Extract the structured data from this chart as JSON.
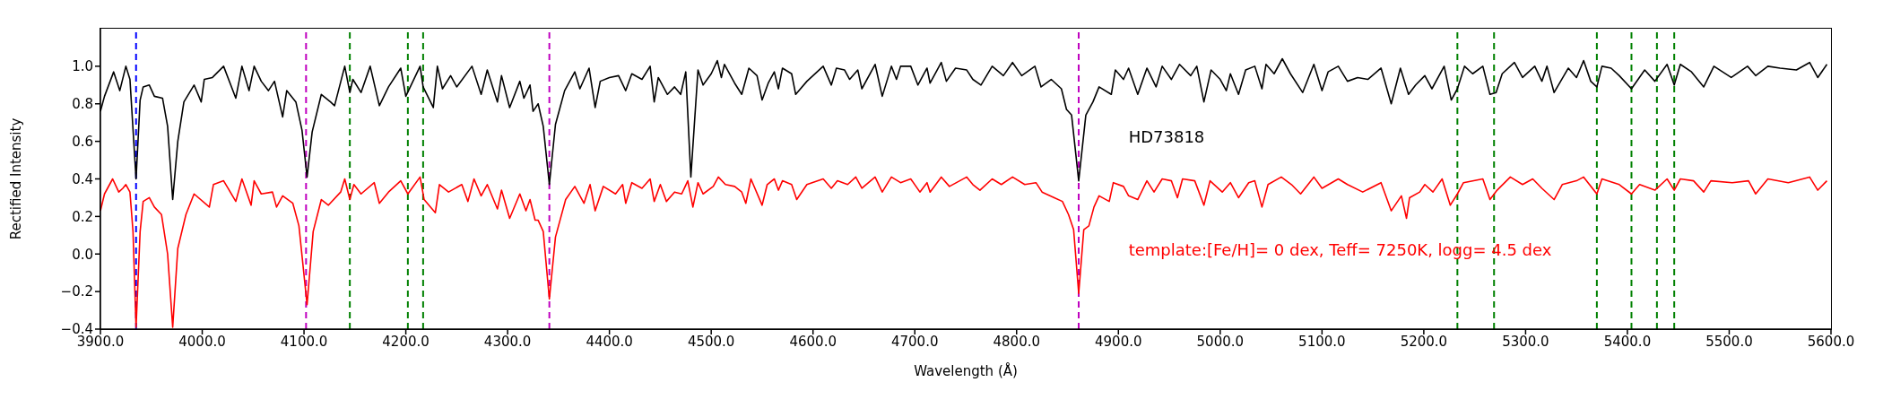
{
  "chart_data": {
    "type": "line",
    "xlabel": "Wavelength (Å)",
    "ylabel": "Rectified Intensity",
    "xlim": [
      3900,
      5600
    ],
    "ylim": [
      -0.4,
      1.2
    ],
    "xticks": [
      {
        "value": 3900,
        "label": "3900.0"
      },
      {
        "value": 4000,
        "label": "4000.0"
      },
      {
        "value": 4100,
        "label": "4100.0"
      },
      {
        "value": 4200,
        "label": "4200.0"
      },
      {
        "value": 4300,
        "label": "4300.0"
      },
      {
        "value": 4400,
        "label": "4400.0"
      },
      {
        "value": 4500,
        "label": "4500.0"
      },
      {
        "value": 4600,
        "label": "4600.0"
      },
      {
        "value": 4700,
        "label": "4700.0"
      },
      {
        "value": 4800,
        "label": "4800.0"
      },
      {
        "value": 4900,
        "label": "4900.0"
      },
      {
        "value": 5000,
        "label": "5000.0"
      },
      {
        "value": 5100,
        "label": "5100.0"
      },
      {
        "value": 5200,
        "label": "5200.0"
      },
      {
        "value": 5300,
        "label": "5300.0"
      },
      {
        "value": 5400,
        "label": "5400.0"
      },
      {
        "value": 5500,
        "label": "5500.0"
      },
      {
        "value": 5600,
        "label": "5600.0"
      }
    ],
    "yticks": [
      {
        "value": -0.4,
        "label": "−0.4"
      },
      {
        "value": -0.2,
        "label": "−0.2"
      },
      {
        "value": 0,
        "label": "0.0"
      },
      {
        "value": 0.2,
        "label": "0.2"
      },
      {
        "value": 0.4,
        "label": "0.4"
      },
      {
        "value": 0.6,
        "label": "0.6"
      },
      {
        "value": 0.8,
        "label": "0.8"
      },
      {
        "value": 1,
        "label": "1.0"
      }
    ],
    "series": [
      {
        "name": "HD73818",
        "color": "#000000",
        "x": [
          3900,
          3904,
          3913,
          3919,
          3925,
          3929,
          3935,
          3939,
          3942,
          3948,
          3953,
          3961,
          3966,
          3971,
          3976,
          3982,
          3992,
          3999,
          4002,
          4010,
          4021,
          4033,
          4039,
          4046,
          4051,
          4058,
          4065,
          4071,
          4079,
          4083,
          4092,
          4098,
          4103,
          4108,
          4117,
          4126,
          4130,
          4140,
          4145,
          4148,
          4156,
          4165,
          4174,
          4183,
          4195,
          4200,
          4214,
          4217,
          4227,
          4231,
          4236,
          4244,
          4250,
          4265,
          4274,
          4280,
          4290,
          4294,
          4302,
          4312,
          4316,
          4322,
          4325,
          4330,
          4335,
          4341,
          4347,
          4350,
          4356,
          4366,
          4371,
          4380,
          4386,
          4391,
          4400,
          4409,
          4416,
          4422,
          4432,
          4440,
          4444,
          4448,
          4457,
          4464,
          4470,
          4475,
          4480,
          4487,
          4492,
          4500,
          4506,
          4510,
          4513,
          4523,
          4530,
          4537,
          4545,
          4550,
          4556,
          4562,
          4566,
          4570,
          4579,
          4583,
          4594,
          4610,
          4618,
          4623,
          4631,
          4636,
          4644,
          4648,
          4661,
          4668,
          4677,
          4682,
          4686,
          4696,
          4703,
          4712,
          4715,
          4726,
          4731,
          4740,
          4751,
          4757,
          4765,
          4776,
          4787,
          4796,
          4805,
          4818,
          4824,
          4834,
          4844,
          4849,
          4854,
          4861,
          4868,
          4875,
          4881,
          4893,
          4897,
          4905,
          4910,
          4919,
          4928,
          4937,
          4943,
          4952,
          4960,
          4971,
          4977,
          4984,
          4991,
          5000,
          5006,
          5010,
          5018,
          5025,
          5034,
          5041,
          5045,
          5053,
          5061,
          5069,
          5081,
          5092,
          5100,
          5106,
          5116,
          5125,
          5135,
          5145,
          5158,
          5168,
          5177,
          5185,
          5192,
          5201,
          5208,
          5220,
          5227,
          5233,
          5240,
          5248,
          5258,
          5265,
          5271,
          5277,
          5289,
          5297,
          5309,
          5316,
          5321,
          5328,
          5342,
          5350,
          5357,
          5364,
          5370,
          5375,
          5384,
          5392,
          5404,
          5417,
          5427,
          5439,
          5446,
          5452,
          5463,
          5475,
          5485,
          5502,
          5518,
          5526,
          5538,
          5550,
          5566,
          5579,
          5587,
          5596
        ],
        "values": [
          0.76,
          0.84,
          0.97,
          0.87,
          1.0,
          0.93,
          0.4,
          0.82,
          0.89,
          0.9,
          0.84,
          0.83,
          0.68,
          0.29,
          0.6,
          0.81,
          0.9,
          0.81,
          0.93,
          0.94,
          1.0,
          0.83,
          1.0,
          0.87,
          1.0,
          0.92,
          0.87,
          0.92,
          0.73,
          0.87,
          0.81,
          0.66,
          0.41,
          0.65,
          0.85,
          0.81,
          0.79,
          1.0,
          0.86,
          0.93,
          0.86,
          1.0,
          0.79,
          0.89,
          0.99,
          0.84,
          1.0,
          0.89,
          0.78,
          1.0,
          0.88,
          0.95,
          0.89,
          1.0,
          0.85,
          0.98,
          0.81,
          0.95,
          0.78,
          0.92,
          0.83,
          0.9,
          0.76,
          0.8,
          0.68,
          0.37,
          0.69,
          0.75,
          0.87,
          0.97,
          0.88,
          0.99,
          0.78,
          0.92,
          0.94,
          0.95,
          0.87,
          0.96,
          0.93,
          1.0,
          0.81,
          0.94,
          0.85,
          0.89,
          0.85,
          0.97,
          0.41,
          0.98,
          0.9,
          0.96,
          1.03,
          0.94,
          1.01,
          0.91,
          0.85,
          0.99,
          0.95,
          0.82,
          0.91,
          0.97,
          0.88,
          0.99,
          0.96,
          0.85,
          0.92,
          1.0,
          0.9,
          0.99,
          0.98,
          0.93,
          0.98,
          0.88,
          1.01,
          0.84,
          1.0,
          0.93,
          1.0,
          1.0,
          0.9,
          0.99,
          0.91,
          1.02,
          0.92,
          0.99,
          0.98,
          0.93,
          0.9,
          1.0,
          0.95,
          1.02,
          0.95,
          1.0,
          0.89,
          0.93,
          0.88,
          0.77,
          0.74,
          0.39,
          0.74,
          0.81,
          0.89,
          0.85,
          0.98,
          0.93,
          0.99,
          0.85,
          0.99,
          0.89,
          1.0,
          0.93,
          1.01,
          0.95,
          1.0,
          0.81,
          0.98,
          0.93,
          0.87,
          0.96,
          0.85,
          0.98,
          1.0,
          0.88,
          1.01,
          0.96,
          1.04,
          0.96,
          0.86,
          1.01,
          0.87,
          0.97,
          1.0,
          0.92,
          0.94,
          0.93,
          0.99,
          0.8,
          0.99,
          0.85,
          0.9,
          0.95,
          0.88,
          1.0,
          0.82,
          0.88,
          1.0,
          0.96,
          1.0,
          0.85,
          0.86,
          0.96,
          1.02,
          0.94,
          1.0,
          0.92,
          1.0,
          0.86,
          0.99,
          0.94,
          1.03,
          0.92,
          0.89,
          1.0,
          0.99,
          0.95,
          0.88,
          0.98,
          0.92,
          1.01,
          0.9,
          1.01,
          0.97,
          0.89,
          1.0,
          0.94,
          1.0,
          0.95,
          1.0,
          0.99,
          0.98,
          1.02,
          0.94,
          1.01
        ]
      },
      {
        "name": "template:[Fe/H]= 0 dex, Teff= 7250K, logg= 4.5 dex",
        "color": "#ff0000",
        "x": [
          3900,
          3904,
          3912,
          3918,
          3922,
          3925,
          3929,
          3932,
          3935,
          3939,
          3942,
          3948,
          3953,
          3960,
          3966,
          3971,
          3976,
          3984,
          3992,
          4007,
          4011,
          4021,
          4033,
          4039,
          4048,
          4051,
          4058,
          4069,
          4073,
          4079,
          4089,
          4095,
          4103,
          4109,
          4117,
          4124,
          4136,
          4140,
          4145,
          4149,
          4156,
          4169,
          4174,
          4183,
          4195,
          4202,
          4214,
          4218,
          4229,
          4233,
          4242,
          4255,
          4261,
          4267,
          4274,
          4280,
          4290,
          4294,
          4302,
          4312,
          4318,
          4322,
          4327,
          4330,
          4335,
          4341,
          4347,
          4351,
          4357,
          4366,
          4375,
          4381,
          4386,
          4394,
          4406,
          4413,
          4416,
          4422,
          4432,
          4440,
          4444,
          4450,
          4456,
          4464,
          4471,
          4477,
          4482,
          4487,
          4492,
          4502,
          4507,
          4514,
          4523,
          4530,
          4534,
          4539,
          4550,
          4555,
          4562,
          4566,
          4570,
          4579,
          4584,
          4594,
          4610,
          4618,
          4624,
          4634,
          4642,
          4648,
          4661,
          4668,
          4677,
          4686,
          4696,
          4705,
          4712,
          4715,
          4726,
          4734,
          4751,
          4757,
          4764,
          4776,
          4785,
          4796,
          4808,
          4819,
          4825,
          4837,
          4845,
          4851,
          4856,
          4861,
          4866,
          4871,
          4876,
          4881,
          4891,
          4895,
          4905,
          4910,
          4919,
          4928,
          4935,
          4943,
          4952,
          4958,
          4963,
          4975,
          4984,
          4990,
          5002,
          5010,
          5018,
          5028,
          5034,
          5041,
          5047,
          5060,
          5070,
          5079,
          5092,
          5100,
          5116,
          5125,
          5140,
          5158,
          5168,
          5178,
          5183,
          5186,
          5196,
          5201,
          5209,
          5218,
          5226,
          5233,
          5239,
          5258,
          5265,
          5272,
          5285,
          5297,
          5307,
          5316,
          5328,
          5336,
          5350,
          5357,
          5370,
          5375,
          5392,
          5404,
          5412,
          5427,
          5439,
          5446,
          5452,
          5465,
          5475,
          5482,
          5503,
          5519,
          5526,
          5538,
          5558,
          5579,
          5587,
          5596
        ],
        "values": [
          0.23,
          0.32,
          0.4,
          0.33,
          0.35,
          0.37,
          0.33,
          0.12,
          -0.39,
          0.12,
          0.28,
          0.3,
          0.25,
          0.21,
          0.0,
          -0.39,
          0.03,
          0.21,
          0.32,
          0.25,
          0.37,
          0.39,
          0.28,
          0.4,
          0.26,
          0.39,
          0.32,
          0.33,
          0.25,
          0.31,
          0.27,
          0.15,
          -0.27,
          0.12,
          0.29,
          0.26,
          0.33,
          0.4,
          0.29,
          0.37,
          0.32,
          0.38,
          0.27,
          0.33,
          0.39,
          0.32,
          0.41,
          0.29,
          0.22,
          0.37,
          0.33,
          0.37,
          0.28,
          0.4,
          0.31,
          0.37,
          0.24,
          0.34,
          0.19,
          0.32,
          0.23,
          0.29,
          0.18,
          0.18,
          0.12,
          -0.24,
          0.09,
          0.17,
          0.29,
          0.36,
          0.27,
          0.37,
          0.23,
          0.36,
          0.32,
          0.37,
          0.27,
          0.38,
          0.35,
          0.4,
          0.28,
          0.37,
          0.28,
          0.33,
          0.32,
          0.39,
          0.25,
          0.38,
          0.32,
          0.36,
          0.41,
          0.37,
          0.36,
          0.33,
          0.27,
          0.4,
          0.26,
          0.37,
          0.4,
          0.34,
          0.39,
          0.37,
          0.29,
          0.37,
          0.4,
          0.35,
          0.39,
          0.37,
          0.41,
          0.35,
          0.41,
          0.33,
          0.41,
          0.38,
          0.4,
          0.33,
          0.38,
          0.33,
          0.41,
          0.36,
          0.41,
          0.37,
          0.34,
          0.4,
          0.37,
          0.41,
          0.37,
          0.38,
          0.33,
          0.3,
          0.28,
          0.21,
          0.13,
          -0.21,
          0.13,
          0.15,
          0.25,
          0.31,
          0.28,
          0.38,
          0.36,
          0.31,
          0.29,
          0.39,
          0.33,
          0.4,
          0.39,
          0.3,
          0.4,
          0.39,
          0.26,
          0.39,
          0.33,
          0.38,
          0.3,
          0.38,
          0.39,
          0.25,
          0.37,
          0.41,
          0.37,
          0.32,
          0.41,
          0.35,
          0.4,
          0.37,
          0.33,
          0.38,
          0.23,
          0.31,
          0.19,
          0.3,
          0.33,
          0.37,
          0.33,
          0.4,
          0.26,
          0.32,
          0.38,
          0.4,
          0.29,
          0.34,
          0.41,
          0.37,
          0.4,
          0.35,
          0.29,
          0.37,
          0.39,
          0.41,
          0.32,
          0.4,
          0.37,
          0.32,
          0.37,
          0.34,
          0.4,
          0.34,
          0.4,
          0.39,
          0.33,
          0.39,
          0.38,
          0.39,
          0.32,
          0.4,
          0.38,
          0.41,
          0.34,
          0.39
        ]
      }
    ],
    "ref_lines": [
      {
        "axis": "x",
        "value": 3935,
        "color": "#0000ff",
        "line_style": "dashed"
      },
      {
        "axis": "x",
        "value": 4102,
        "color": "#bf00bf",
        "line_style": "dashed"
      },
      {
        "axis": "x",
        "value": 4341,
        "color": "#bf00bf",
        "line_style": "dashed"
      },
      {
        "axis": "x",
        "value": 4861,
        "color": "#bf00bf",
        "line_style": "dashed"
      },
      {
        "axis": "x",
        "value": 4145,
        "color": "#008000",
        "line_style": "dashed"
      },
      {
        "axis": "x",
        "value": 4202,
        "color": "#008000",
        "line_style": "dashed"
      },
      {
        "axis": "x",
        "value": 4217,
        "color": "#008000",
        "line_style": "dashed"
      },
      {
        "axis": "x",
        "value": 5233,
        "color": "#008000",
        "line_style": "dashed"
      },
      {
        "axis": "x",
        "value": 5269,
        "color": "#008000",
        "line_style": "dashed"
      },
      {
        "axis": "x",
        "value": 5370,
        "color": "#008000",
        "line_style": "dashed"
      },
      {
        "axis": "x",
        "value": 5404,
        "color": "#008000",
        "line_style": "dashed"
      },
      {
        "axis": "x",
        "value": 5429,
        "color": "#008000",
        "line_style": "dashed"
      },
      {
        "axis": "x",
        "value": 5446,
        "color": "#008000",
        "line_style": "dashed"
      }
    ],
    "grid": false
  }
}
